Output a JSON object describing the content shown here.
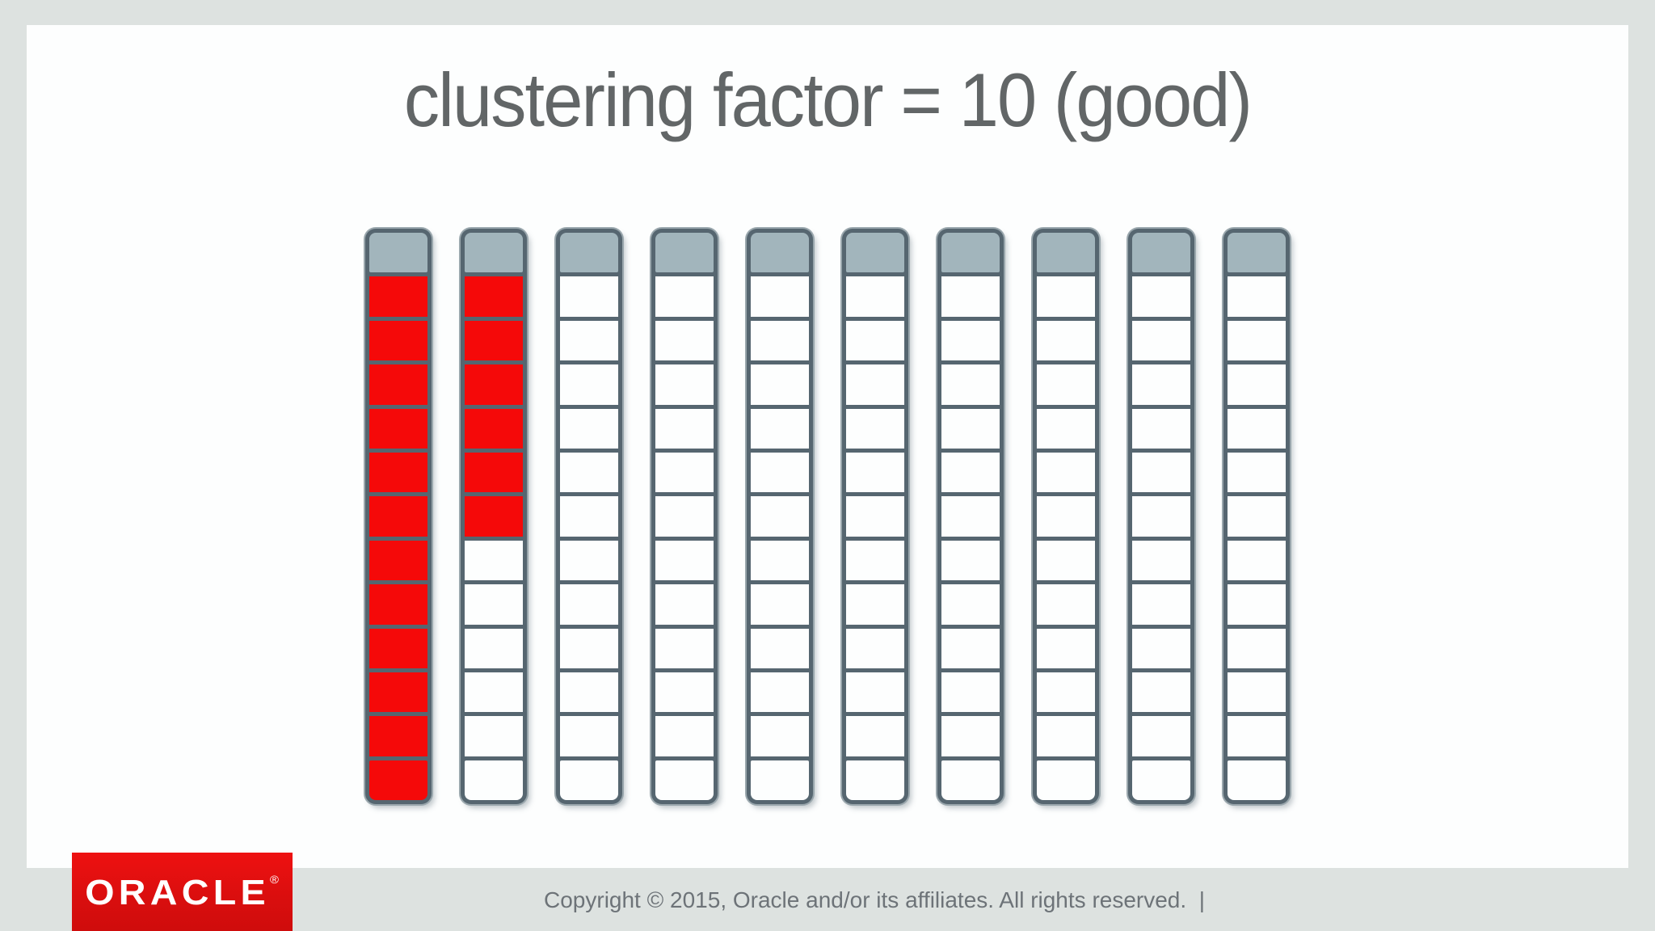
{
  "slide": {
    "title": "clustering factor = 10 (good)",
    "colors": {
      "background_outer": "#dde2e0",
      "background_card": "#fdfefe",
      "title": "#626667"
    }
  },
  "grid": {
    "num_columns": 10,
    "cells_per_column": 12,
    "has_header_cell": true,
    "filled_per_column": [
      12,
      6,
      0,
      0,
      0,
      0,
      0,
      0,
      0,
      0
    ],
    "colors": {
      "filled": "#f50909",
      "empty": "#fdfefe",
      "header": "#a2b5bc",
      "frame": "#566670"
    }
  },
  "footer": {
    "logo_text": "ORACLE",
    "logo_registered_mark": "®",
    "logo_background": "#d90e0e",
    "copyright": "Copyright © 2015, Oracle and/or its affiliates. All rights reserved.  |"
  }
}
